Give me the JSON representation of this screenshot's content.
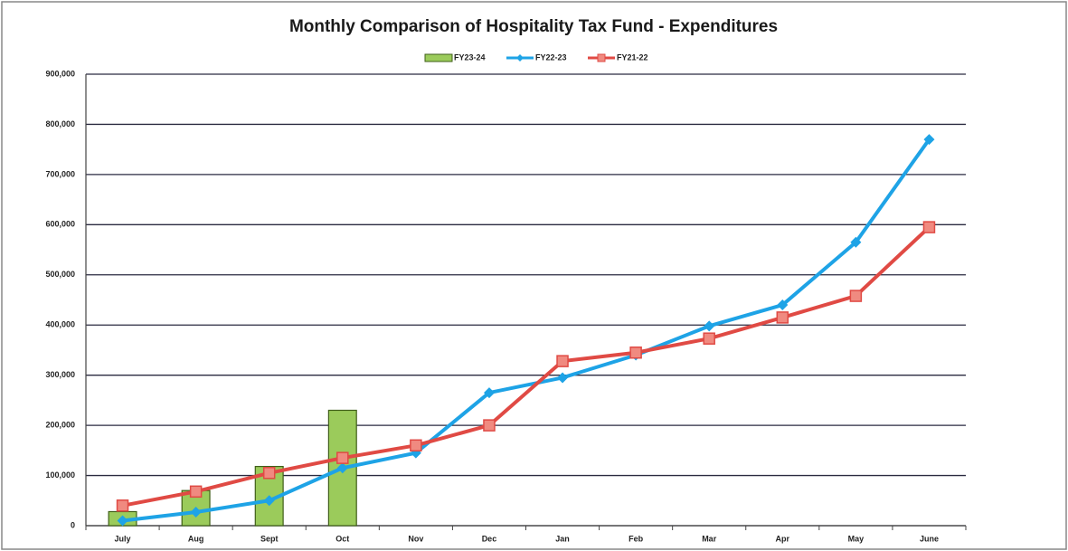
{
  "chart_data": {
    "type": "bar",
    "title": "Monthly Comparison of Hospitality Tax Fund - Expenditures",
    "categories": [
      "July",
      "Aug",
      "Sept",
      "Oct",
      "Nov",
      "Dec",
      "Jan",
      "Feb",
      "Mar",
      "Apr",
      "May",
      "June"
    ],
    "series": [
      {
        "name": "FY23-24",
        "type": "bar",
        "color": "#9bcb5b",
        "values": [
          28000,
          70000,
          118000,
          230000,
          null,
          null,
          null,
          null,
          null,
          null,
          null,
          null
        ]
      },
      {
        "name": "FY22-23",
        "type": "line",
        "color": "#1ea3e6",
        "values": [
          10000,
          27000,
          50000,
          115000,
          145000,
          265000,
          295000,
          340000,
          398000,
          440000,
          565000,
          770000
        ]
      },
      {
        "name": "FY21-22",
        "type": "line",
        "color": "#e04a44",
        "values": [
          40000,
          68000,
          105000,
          135000,
          160000,
          200000,
          328000,
          345000,
          373000,
          415000,
          458000,
          595000
        ]
      }
    ],
    "ylim": [
      0,
      900000
    ],
    "yticks": [
      0,
      {
        "value": 100000,
        "label": "100,000"
      },
      {
        "value": 200000,
        "label": "200,000"
      },
      {
        "value": 300000,
        "label": "300,000"
      },
      {
        "value": 400000,
        "label": "400,000"
      },
      {
        "value": 500000,
        "label": "500,000"
      },
      {
        "value": 600000,
        "label": "600,000"
      },
      {
        "value": 700000,
        "label": "700,000"
      },
      {
        "value": 800000,
        "label": "800,000"
      },
      {
        "value": 900000,
        "label": "900,000"
      }
    ],
    "grid": true,
    "legend": "top"
  }
}
